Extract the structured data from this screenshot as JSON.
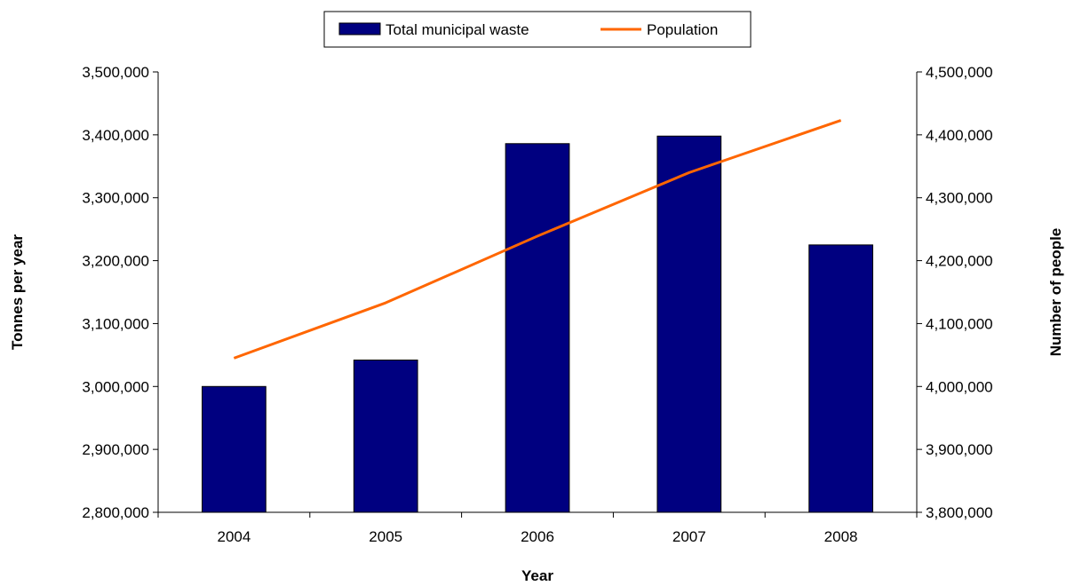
{
  "chart_data": {
    "type": "bar",
    "categories": [
      "2004",
      "2005",
      "2006",
      "2007",
      "2008"
    ],
    "series": [
      {
        "name": "Total municipal waste",
        "type": "bar",
        "axis": "left",
        "color": "#000080",
        "values": [
          3000000,
          3042000,
          3386000,
          3398000,
          3225000
        ]
      },
      {
        "name": "Population",
        "type": "line",
        "axis": "right",
        "color": "#FF6600",
        "values": [
          4045000,
          4133000,
          4239000,
          4340000,
          4423000
        ]
      }
    ],
    "xlabel": "Year",
    "ylabel": "Tonnes per year",
    "y2label": "Number of people",
    "ylim": [
      2800000,
      3500000
    ],
    "y2lim": [
      3800000,
      4500000
    ],
    "yticks": [
      "2,800,000",
      "2,900,000",
      "3,000,000",
      "3,100,000",
      "3,200,000",
      "3,300,000",
      "3,400,000",
      "3,500,000"
    ],
    "y2ticks": [
      "3,800,000",
      "3,900,000",
      "4,000,000",
      "4,100,000",
      "4,200,000",
      "4,300,000",
      "4,400,000",
      "4,500,000"
    ],
    "grid": false,
    "legend_position": "top-center"
  }
}
